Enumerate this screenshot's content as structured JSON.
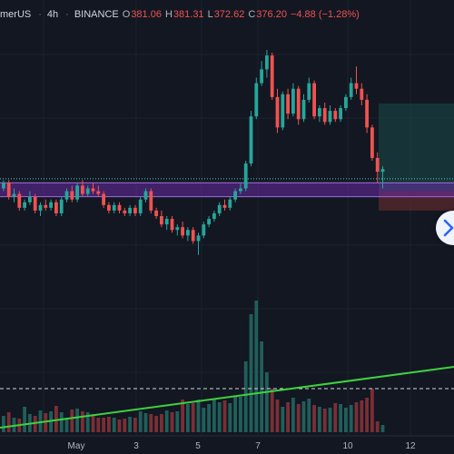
{
  "header": {
    "symbol": "merUS",
    "interval": "4h",
    "exchange": "BINANCE",
    "open_label": "O",
    "open": "381.06",
    "high_label": "H",
    "high": "381.31",
    "low_label": "L",
    "low": "372.62",
    "close_label": "C",
    "close": "376.20",
    "change": "−4.88 (−1.28%)"
  },
  "xaxis_labels": [
    "May",
    "3",
    "5",
    "7",
    "10",
    "12"
  ],
  "colors": {
    "background": "#131722",
    "up": "#26a69a",
    "down": "#ef5350",
    "trendline": "#3fd13f",
    "zone": "#7b2fbe",
    "target": "#1a4d4a",
    "stop": "#5a2a2e"
  },
  "icons": {
    "scroll_button": "chevron-right-icon"
  },
  "chart_data": {
    "type": "candlestick",
    "timeframe": "4h",
    "candles_ohlc": [
      [
        0.5,
        0.53,
        0.49,
        0.52
      ],
      [
        0.52,
        0.53,
        0.46,
        0.47
      ],
      [
        0.47,
        0.5,
        0.45,
        0.48
      ],
      [
        0.48,
        0.49,
        0.42,
        0.43
      ],
      [
        0.43,
        0.46,
        0.42,
        0.45
      ],
      [
        0.45,
        0.49,
        0.44,
        0.47
      ],
      [
        0.47,
        0.48,
        0.41,
        0.42
      ],
      [
        0.42,
        0.45,
        0.4,
        0.44
      ],
      [
        0.44,
        0.46,
        0.42,
        0.43
      ],
      [
        0.43,
        0.46,
        0.42,
        0.45
      ],
      [
        0.45,
        0.46,
        0.4,
        0.41
      ],
      [
        0.41,
        0.47,
        0.4,
        0.46
      ],
      [
        0.46,
        0.5,
        0.45,
        0.49
      ],
      [
        0.49,
        0.51,
        0.45,
        0.46
      ],
      [
        0.46,
        0.52,
        0.45,
        0.51
      ],
      [
        0.51,
        0.53,
        0.47,
        0.48
      ],
      [
        0.48,
        0.51,
        0.47,
        0.5
      ],
      [
        0.5,
        0.52,
        0.48,
        0.49
      ],
      [
        0.49,
        0.51,
        0.47,
        0.48
      ],
      [
        0.48,
        0.49,
        0.43,
        0.44
      ],
      [
        0.44,
        0.45,
        0.41,
        0.42
      ],
      [
        0.42,
        0.45,
        0.41,
        0.44
      ],
      [
        0.44,
        0.45,
        0.41,
        0.42
      ],
      [
        0.42,
        0.43,
        0.4,
        0.41
      ],
      [
        0.41,
        0.44,
        0.4,
        0.43
      ],
      [
        0.43,
        0.44,
        0.4,
        0.41
      ],
      [
        0.41,
        0.47,
        0.4,
        0.46
      ],
      [
        0.46,
        0.5,
        0.45,
        0.49
      ],
      [
        0.49,
        0.5,
        0.41,
        0.42
      ],
      [
        0.42,
        0.43,
        0.39,
        0.4
      ],
      [
        0.4,
        0.42,
        0.36,
        0.37
      ],
      [
        0.37,
        0.4,
        0.35,
        0.39
      ],
      [
        0.39,
        0.4,
        0.34,
        0.35
      ],
      [
        0.35,
        0.37,
        0.33,
        0.36
      ],
      [
        0.36,
        0.38,
        0.32,
        0.33
      ],
      [
        0.33,
        0.36,
        0.31,
        0.35
      ],
      [
        0.35,
        0.36,
        0.3,
        0.31
      ],
      [
        0.31,
        0.34,
        0.26,
        0.33
      ],
      [
        0.33,
        0.38,
        0.32,
        0.37
      ],
      [
        0.37,
        0.4,
        0.36,
        0.39
      ],
      [
        0.39,
        0.42,
        0.38,
        0.41
      ],
      [
        0.41,
        0.45,
        0.4,
        0.44
      ],
      [
        0.44,
        0.46,
        0.42,
        0.43
      ],
      [
        0.43,
        0.47,
        0.42,
        0.46
      ],
      [
        0.46,
        0.5,
        0.45,
        0.49
      ],
      [
        0.49,
        0.52,
        0.48,
        0.5
      ],
      [
        0.5,
        0.6,
        0.49,
        0.59
      ],
      [
        0.59,
        0.78,
        0.58,
        0.76
      ],
      [
        0.76,
        0.9,
        0.75,
        0.88
      ],
      [
        0.88,
        0.96,
        0.87,
        0.93
      ],
      [
        0.93,
        1.0,
        0.9,
        0.98
      ],
      [
        0.98,
        0.99,
        0.82,
        0.83
      ],
      [
        0.83,
        0.86,
        0.7,
        0.72
      ],
      [
        0.72,
        0.85,
        0.71,
        0.84
      ],
      [
        0.84,
        0.86,
        0.75,
        0.77
      ],
      [
        0.77,
        0.88,
        0.76,
        0.86
      ],
      [
        0.86,
        0.87,
        0.73,
        0.75
      ],
      [
        0.75,
        0.84,
        0.74,
        0.82
      ],
      [
        0.82,
        0.9,
        0.81,
        0.88
      ],
      [
        0.88,
        0.89,
        0.75,
        0.76
      ],
      [
        0.76,
        0.8,
        0.74,
        0.79
      ],
      [
        0.79,
        0.81,
        0.73,
        0.74
      ],
      [
        0.74,
        0.8,
        0.73,
        0.78
      ],
      [
        0.78,
        0.79,
        0.74,
        0.75
      ],
      [
        0.75,
        0.8,
        0.74,
        0.79
      ],
      [
        0.79,
        0.84,
        0.78,
        0.83
      ],
      [
        0.83,
        0.9,
        0.82,
        0.88
      ],
      [
        0.88,
        0.94,
        0.84,
        0.86
      ],
      [
        0.86,
        0.88,
        0.8,
        0.82
      ],
      [
        0.82,
        0.84,
        0.7,
        0.72
      ],
      [
        0.72,
        0.73,
        0.6,
        0.61
      ],
      [
        0.61,
        0.63,
        0.52,
        0.56
      ],
      [
        0.56,
        0.58,
        0.5,
        0.57
      ]
    ],
    "volume": [
      18,
      22,
      16,
      15,
      28,
      20,
      18,
      24,
      21,
      23,
      29,
      22,
      16,
      25,
      26,
      23,
      22,
      20,
      16,
      16,
      17,
      16,
      14,
      15,
      17,
      16,
      23,
      21,
      20,
      18,
      20,
      24,
      22,
      23,
      36,
      31,
      32,
      36,
      27,
      31,
      36,
      33,
      35,
      32,
      39,
      39,
      78,
      130,
      145,
      100,
      66,
      48,
      36,
      28,
      33,
      38,
      31,
      34,
      37,
      30,
      28,
      26,
      27,
      32,
      31,
      27,
      30,
      33,
      35,
      38,
      48,
      12,
      8
    ],
    "horizontal_levels": {
      "purple_zone_top": 0.52,
      "purple_zone_bottom": 0.47,
      "dotted_line": 0.535,
      "volume_ma_line": 0.69
    },
    "position_tool": {
      "target_top": 1.0,
      "entry": 0.49,
      "stop_bottom": 0.42
    },
    "trendline": {
      "from": [
        0,
        0.0
      ],
      "to": [
        1,
        1.0
      ]
    }
  }
}
